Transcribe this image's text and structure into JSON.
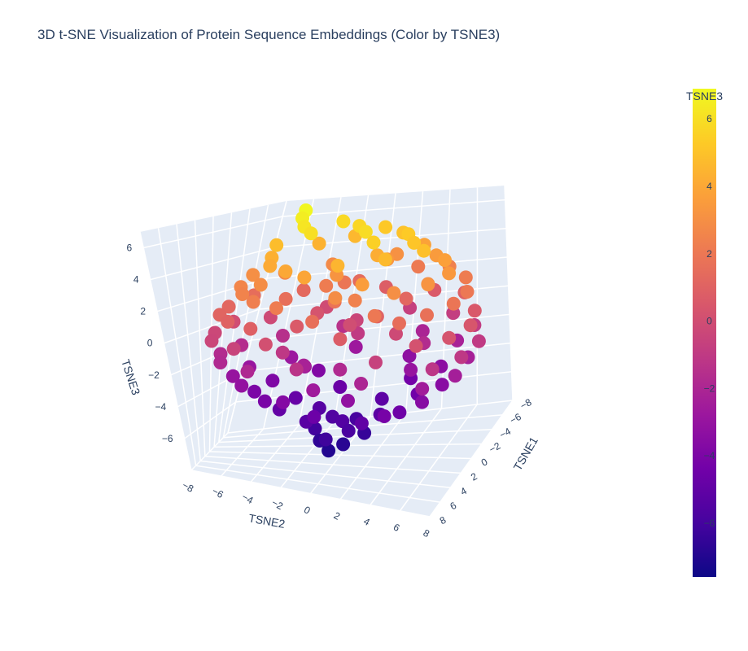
{
  "chart_data": {
    "type": "scatter",
    "subtype": "3d-scatter",
    "title": "3D t-SNE Visualization of Protein Sequence Embeddings (Color by TSNE3)",
    "axes": {
      "x": {
        "label": "TSNE1",
        "range": [
          -8,
          8
        ],
        "ticks": [
          "−8",
          "−6",
          "−4",
          "−2",
          "0",
          "2",
          "4",
          "6",
          "8"
        ]
      },
      "y": {
        "label": "TSNE2",
        "range": [
          -8,
          8
        ],
        "ticks": [
          "−8",
          "−6",
          "−4",
          "−2",
          "0",
          "2",
          "4",
          "6",
          "8"
        ]
      },
      "z": {
        "label": "TSNE3",
        "range": [
          -8,
          7
        ],
        "ticks": [
          "−6",
          "−4",
          "−2",
          "0",
          "2",
          "4",
          "6"
        ]
      }
    },
    "grid": true,
    "background": "#e5ecf6",
    "colorscale": {
      "name": "Plasma",
      "stops": [
        "#0d0887",
        "#46039f",
        "#7201a8",
        "#9c179e",
        "#bd3786",
        "#d8576b",
        "#ed7953",
        "#fb9f3a",
        "#fdca26",
        "#f0f921"
      ],
      "range": [
        -7.6,
        6.9
      ]
    },
    "colorbar": {
      "title": "TSNE3",
      "ticks": [
        {
          "value": 6,
          "label": "6"
        },
        {
          "value": 4,
          "label": "4"
        },
        {
          "value": 2,
          "label": "2"
        },
        {
          "value": 0,
          "label": "0"
        },
        {
          "value": -2,
          "label": "−2"
        },
        {
          "value": -4,
          "label": "−4"
        },
        {
          "value": -6,
          "label": "−6"
        }
      ]
    },
    "points": [
      [
        -3.2,
        -4.1,
        6.8
      ],
      [
        -1.5,
        -3.6,
        6.5
      ],
      [
        0.4,
        -2.8,
        6.2
      ],
      [
        2.1,
        -1.9,
        6.0
      ],
      [
        -4.6,
        -2.2,
        5.8
      ],
      [
        -2.8,
        -0.6,
        5.7
      ],
      [
        1.3,
        0.8,
        5.9
      ],
      [
        3.0,
        1.6,
        5.5
      ],
      [
        -5.1,
        0.4,
        5.2
      ],
      [
        -3.7,
        1.9,
        5.0
      ],
      [
        -1.2,
        2.7,
        5.3
      ],
      [
        0.9,
        3.4,
        5.1
      ],
      [
        2.6,
        4.2,
        4.9
      ],
      [
        4.3,
        2.5,
        4.7
      ],
      [
        5.2,
        0.3,
        4.5
      ],
      [
        -6.0,
        -1.8,
        4.6
      ],
      [
        -4.9,
        -3.7,
        4.4
      ],
      [
        -2.0,
        -5.2,
        4.8
      ],
      [
        0.2,
        -4.6,
        4.3
      ],
      [
        2.5,
        -3.9,
        4.1
      ],
      [
        4.1,
        -2.6,
        4.0
      ],
      [
        5.8,
        -1.2,
        3.9
      ],
      [
        6.3,
        1.8,
        3.6
      ],
      [
        -5.6,
        2.9,
        3.8
      ],
      [
        -3.4,
        4.1,
        3.5
      ],
      [
        -0.8,
        5.0,
        3.7
      ],
      [
        1.7,
        5.6,
        3.4
      ],
      [
        3.9,
        4.8,
        3.2
      ],
      [
        5.5,
        3.3,
        3.0
      ],
      [
        6.8,
        0.6,
        2.9
      ],
      [
        -6.7,
        0.9,
        3.1
      ],
      [
        -6.2,
        -3.1,
        2.8
      ],
      [
        -4.3,
        -5.4,
        2.7
      ],
      [
        -1.6,
        -6.3,
        3.0
      ],
      [
        1.0,
        -6.0,
        2.6
      ],
      [
        3.4,
        -5.1,
        2.5
      ],
      [
        5.1,
        -4.0,
        2.3
      ],
      [
        6.6,
        -2.4,
        2.2
      ],
      [
        7.1,
        2.7,
        2.0
      ],
      [
        -7.0,
        2.3,
        2.1
      ],
      [
        -5.0,
        4.7,
        2.4
      ],
      [
        -2.6,
        6.1,
        2.2
      ],
      [
        0.3,
        6.6,
        2.0
      ],
      [
        2.9,
        6.2,
        1.9
      ],
      [
        5.0,
        5.1,
        1.7
      ],
      [
        6.4,
        3.9,
        1.5
      ],
      [
        7.3,
        -0.4,
        1.6
      ],
      [
        -7.2,
        -1.5,
        1.4
      ],
      [
        -5.8,
        -4.6,
        1.3
      ],
      [
        -3.1,
        -6.7,
        1.5
      ],
      [
        -0.2,
        -7.1,
        1.2
      ],
      [
        2.7,
        -6.6,
        1.1
      ],
      [
        4.8,
        -5.5,
        1.0
      ],
      [
        6.5,
        -3.8,
        0.9
      ],
      [
        7.4,
        1.1,
        0.7
      ],
      [
        -7.5,
        0.2,
        0.8
      ],
      [
        -6.3,
        3.6,
        0.6
      ],
      [
        -4.0,
        5.9,
        0.9
      ],
      [
        -1.1,
        7.0,
        0.5
      ],
      [
        1.8,
        7.2,
        0.4
      ],
      [
        4.3,
        6.4,
        0.3
      ],
      [
        6.0,
        4.9,
        0.2
      ],
      [
        7.0,
        -2.9,
        0.1
      ],
      [
        -6.9,
        -3.3,
        -0.1
      ],
      [
        -4.8,
        -6.1,
        -0.2
      ],
      [
        -2.0,
        -7.4,
        0.0
      ],
      [
        0.9,
        -7.5,
        -0.3
      ],
      [
        3.7,
        -6.8,
        -0.4
      ],
      [
        5.7,
        -5.0,
        -0.5
      ],
      [
        6.9,
        3.0,
        -0.6
      ],
      [
        -7.3,
        1.9,
        -0.7
      ],
      [
        -5.5,
        5.0,
        -0.8
      ],
      [
        -2.9,
        6.8,
        -0.9
      ],
      [
        0.1,
        7.6,
        -1.0
      ],
      [
        3.0,
        7.1,
        -1.1
      ],
      [
        5.3,
        5.9,
        -1.2
      ],
      [
        6.8,
        -1.3,
        -1.3
      ],
      [
        -6.6,
        -2.0,
        -1.4
      ],
      [
        -5.2,
        -5.3,
        -1.5
      ],
      [
        -2.6,
        -7.0,
        -1.6
      ],
      [
        0.5,
        -7.3,
        -1.7
      ],
      [
        3.3,
        -6.5,
        -1.8
      ],
      [
        5.4,
        -4.4,
        -1.9
      ],
      [
        6.2,
        2.2,
        -2.0
      ],
      [
        -6.4,
        3.0,
        -2.1
      ],
      [
        -4.1,
        5.6,
        -2.2
      ],
      [
        -1.0,
        6.9,
        -2.3
      ],
      [
        2.2,
        6.8,
        -2.4
      ],
      [
        4.6,
        5.4,
        -2.5
      ],
      [
        6.1,
        -0.5,
        -2.6
      ],
      [
        -5.9,
        -0.9,
        -2.7
      ],
      [
        -4.4,
        -4.4,
        -2.8
      ],
      [
        -1.8,
        -6.2,
        -2.9
      ],
      [
        1.1,
        -6.4,
        -3.0
      ],
      [
        3.8,
        -5.2,
        -3.1
      ],
      [
        5.5,
        1.4,
        -3.2
      ],
      [
        -5.0,
        2.6,
        -3.3
      ],
      [
        -2.8,
        5.0,
        -3.4
      ],
      [
        0.4,
        5.8,
        -3.5
      ],
      [
        3.4,
        5.3,
        -3.6
      ],
      [
        5.0,
        -2.5,
        -3.7
      ],
      [
        -4.6,
        -2.7,
        -3.8
      ],
      [
        -2.4,
        -4.9,
        -3.9
      ],
      [
        0.8,
        -5.2,
        -4.0
      ],
      [
        3.2,
        -4.0,
        -4.1
      ],
      [
        4.5,
        3.4,
        -4.2
      ],
      [
        -3.5,
        3.1,
        -4.3
      ],
      [
        -0.6,
        4.2,
        -4.4
      ],
      [
        2.6,
        3.9,
        -4.5
      ],
      [
        4.3,
        -0.8,
        -4.6
      ],
      [
        -3.6,
        -1.1,
        -4.7
      ],
      [
        -1.3,
        -3.2,
        -4.8
      ],
      [
        1.6,
        -3.5,
        -4.9
      ],
      [
        3.5,
        1.9,
        -5.0
      ],
      [
        -2.0,
        1.8,
        -5.1
      ],
      [
        0.9,
        2.4,
        -5.2
      ],
      [
        2.8,
        -1.6,
        -5.3
      ],
      [
        -1.1,
        -1.7,
        -5.4
      ],
      [
        1.5,
        0.3,
        -5.5
      ],
      [
        0.2,
        -0.6,
        -5.6
      ],
      [
        2.4,
        0.9,
        -5.8
      ],
      [
        -0.5,
        0.7,
        -5.9
      ],
      [
        1.2,
        -1.4,
        -6.1
      ],
      [
        3.1,
        -0.3,
        -6.2
      ],
      [
        0.7,
        1.5,
        -6.4
      ],
      [
        2.0,
        -0.9,
        -6.6
      ],
      [
        1.8,
        0.5,
        -6.8
      ],
      [
        2.6,
        -0.2,
        -7.0
      ],
      [
        -0.9,
        3.6,
        -3.0
      ],
      [
        1.4,
        -2.2,
        -2.2
      ],
      [
        -2.2,
        0.0,
        -1.0
      ],
      [
        0.0,
        0.0,
        0.0
      ],
      [
        2.3,
        2.0,
        1.0
      ],
      [
        -1.4,
        -1.9,
        2.2
      ],
      [
        0.6,
        -0.8,
        3.2
      ],
      [
        -0.3,
        1.2,
        4.2
      ],
      [
        1.9,
        -0.5,
        1.8
      ],
      [
        -1.7,
        2.8,
        1.2
      ],
      [
        3.6,
        -2.1,
        0.6
      ],
      [
        -3.3,
        -0.4,
        -0.4
      ],
      [
        4.0,
        0.5,
        -1.8
      ],
      [
        -2.5,
        -2.6,
        0.3
      ],
      [
        0.8,
        4.4,
        2.6
      ],
      [
        -3.9,
        1.0,
        3.3
      ],
      [
        2.2,
        -4.5,
        2.9
      ],
      [
        4.7,
        1.2,
        2.4
      ],
      [
        -0.4,
        -3.9,
        1.6
      ],
      [
        -4.2,
        -1.6,
        1.9
      ],
      [
        1.5,
        3.0,
        -0.2
      ],
      [
        3.1,
        -3.0,
        -1.1
      ],
      [
        -2.1,
        4.0,
        -1.7
      ],
      [
        0.3,
        -2.4,
        -2.5
      ]
    ]
  }
}
